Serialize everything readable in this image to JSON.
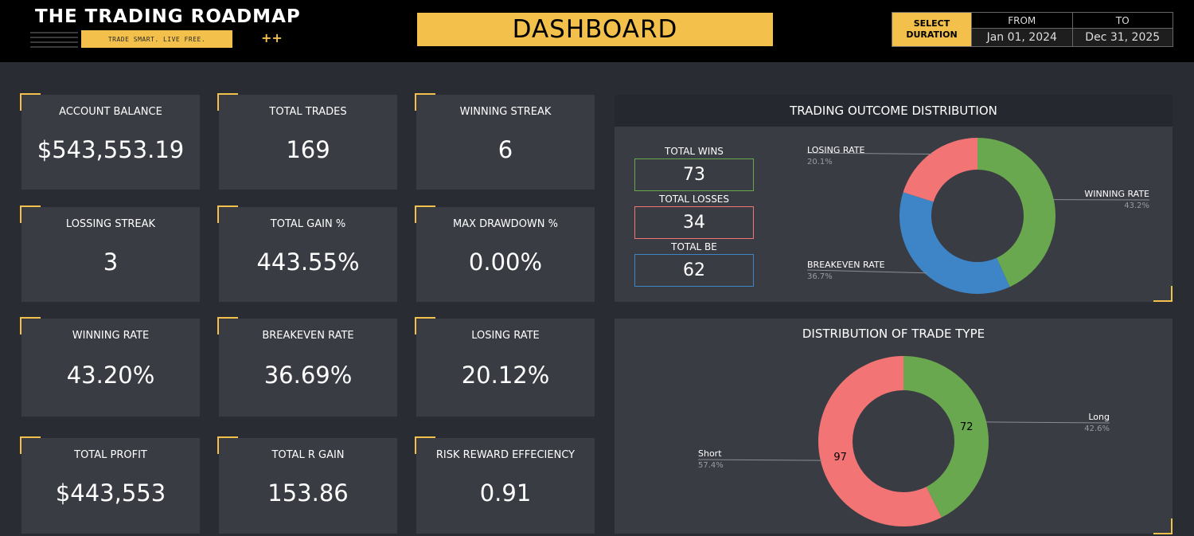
{
  "header": {
    "logo_title": "THE TRADING ROADMAP",
    "logo_tagline": "TRADE SMART. LIVE FREE.",
    "logo_plus": "++",
    "title": "DASHBOARD",
    "select_line1": "SELECT",
    "select_line2": "DURATION",
    "from_label": "FROM",
    "from_value": "Jan 01, 2024",
    "to_label": "TO",
    "to_value": "Dec 31, 2025"
  },
  "cards": {
    "account_balance": {
      "label": "ACCOUNT BALANCE",
      "value": "$543,553.19"
    },
    "total_trades": {
      "label": "TOTAL TRADES",
      "value": "169"
    },
    "winning_streak": {
      "label": "WINNING STREAK",
      "value": "6"
    },
    "lossing_streak": {
      "label": "LOSSING STREAK",
      "value": "3"
    },
    "total_gain": {
      "label": "TOTAL GAIN %",
      "value": "443.55%"
    },
    "max_drawdown": {
      "label": "MAX DRAWDOWN %",
      "value": "0.00%"
    },
    "winning_rate": {
      "label": "WINNING RATE",
      "value": "43.20%"
    },
    "breakeven_rate": {
      "label": "BREAKEVEN RATE",
      "value": "36.69%"
    },
    "losing_rate": {
      "label": "LOSING RATE",
      "value": "20.12%"
    },
    "total_profit": {
      "label": "TOTAL PROFIT",
      "value": "$443,553"
    },
    "total_r_gain": {
      "label": "TOTAL R GAIN",
      "value": "153.86"
    },
    "risk_reward": {
      "label": "RISK REWARD EFFECIENCY",
      "value": "0.91"
    }
  },
  "outcome_panel": {
    "title": "TRADING OUTCOME DISTRIBUTION",
    "wins_label": "TOTAL WINS",
    "wins_value": "73",
    "losses_label": "TOTAL LOSSES",
    "losses_value": "34",
    "be_label": "TOTAL BE",
    "be_value": "62"
  },
  "type_panel": {
    "title": "DISTRIBUTION OF TRADE TYPE"
  },
  "colors": {
    "accent": "#f3c04b",
    "win": "#6aa84f",
    "loss": "#f27474",
    "breakeven": "#3d85c6"
  },
  "chart_data": [
    {
      "type": "pie",
      "title": "TRADING OUTCOME DISTRIBUTION",
      "slices": [
        {
          "label": "WINNING RATE",
          "value": 43.2,
          "pct_label": "43.2%",
          "color": "#6aa84f"
        },
        {
          "label": "BREAKEVEN RATE",
          "value": 36.7,
          "pct_label": "36.7%",
          "color": "#3d85c6"
        },
        {
          "label": "LOSING RATE",
          "value": 20.1,
          "pct_label": "20.1%",
          "color": "#f27474"
        }
      ],
      "donut": true
    },
    {
      "type": "pie",
      "title": "DISTRIBUTION OF TRADE TYPE",
      "slices": [
        {
          "label": "Long",
          "value": 72,
          "pct_label": "42.6%",
          "color": "#6aa84f"
        },
        {
          "label": "Short",
          "value": 97,
          "pct_label": "57.4%",
          "color": "#f27474"
        }
      ],
      "donut": true
    }
  ]
}
